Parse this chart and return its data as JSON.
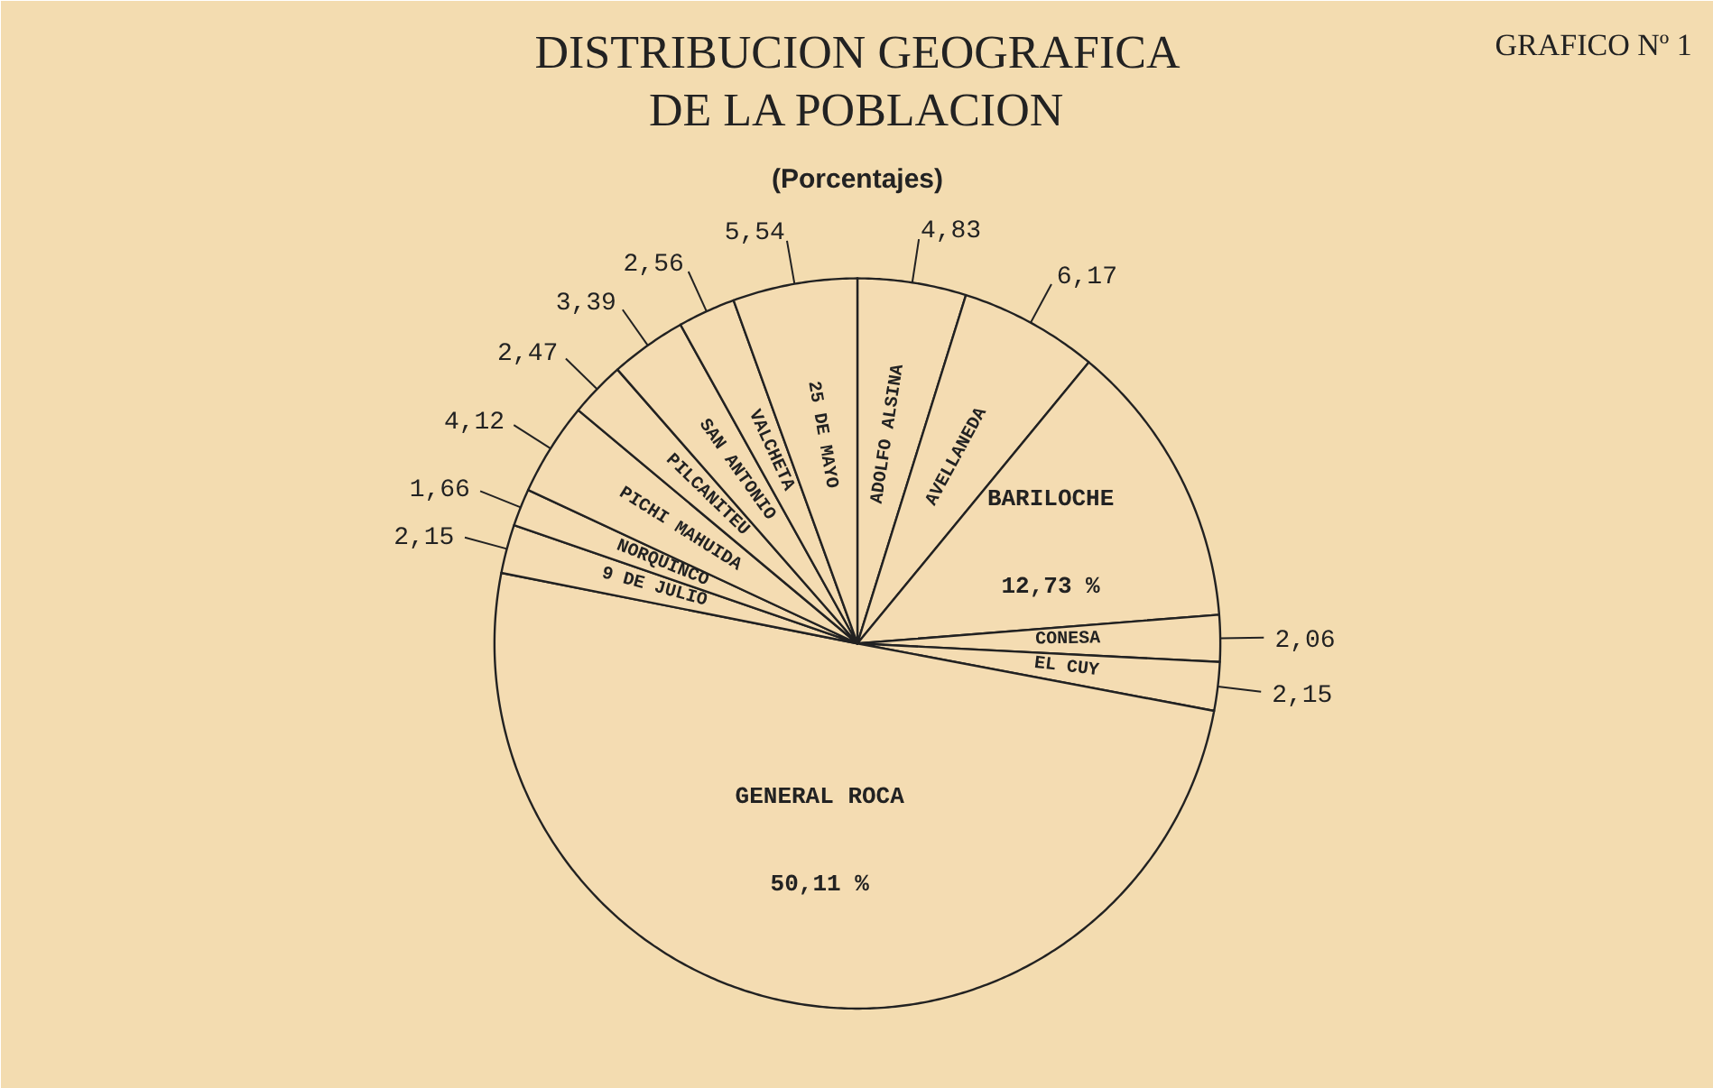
{
  "chart_data": {
    "type": "pie",
    "title": "DISTRIBUCION GEOGRAFICA\nDE LA POBLACION",
    "subtitle": "(Porcentajes)",
    "annotations": [
      "GRAFICO Nº 1"
    ],
    "categories": [
      "ADOLFO ALSINA",
      "AVELLANEDA",
      "BARILOCHE",
      "CONESA",
      "EL CUY",
      "GENERAL ROCA",
      "9 DE JULIO",
      "NORQUINCO",
      "PICHI MAHUIDA",
      "PILCANITEU",
      "SAN ANTONIO",
      "VALCHETA",
      "25 DE MAYO"
    ],
    "values": [
      4.83,
      6.17,
      12.73,
      2.06,
      2.15,
      50.11,
      2.15,
      1.66,
      4.12,
      2.47,
      3.39,
      2.56,
      5.54
    ],
    "value_labels": [
      "4,83",
      "6,17",
      "12,73 %",
      "2,06",
      "2,15",
      "50,11 %",
      "2,15",
      "1,66",
      "4,12",
      "2,47",
      "3,39",
      "2,56",
      "5,54"
    ],
    "colors": [
      "#f4dcb2",
      "#f4dcb2",
      "#f4dcb2",
      "#f4dcb2",
      "#f4dcb2",
      "#f4dcb2",
      "#f4dcb2",
      "#f4dcb2",
      "#f4dcb2",
      "#f4dcb2",
      "#f4dcb2",
      "#f4dcb2",
      "#f4dcb2"
    ]
  }
}
